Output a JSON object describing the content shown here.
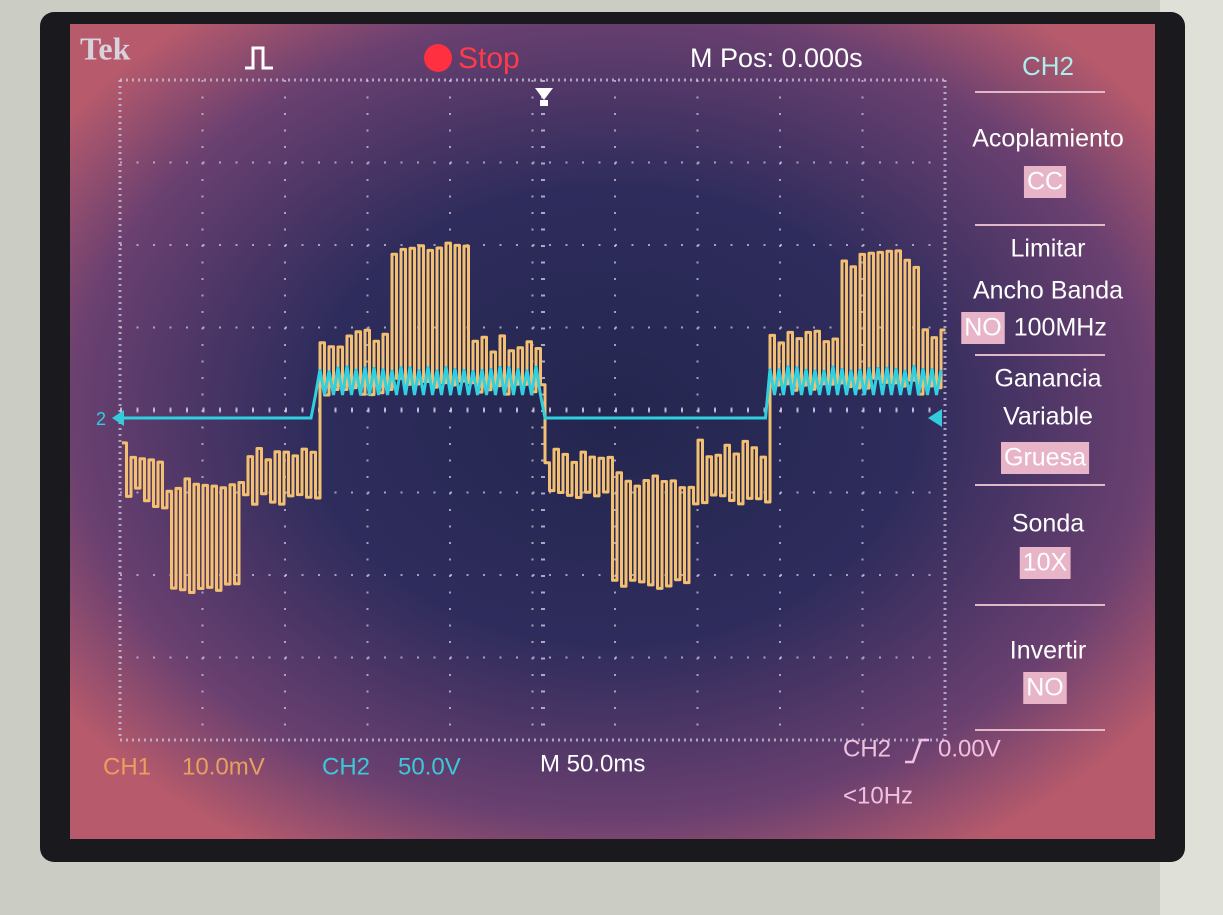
{
  "header": {
    "brand": "Tek",
    "status": "Stop",
    "position": "M Pos: 0.000s"
  },
  "menu": {
    "title": "CH2",
    "items": [
      {
        "lines": [
          "Acoplamiento"
        ],
        "value": "CC"
      },
      {
        "lines": [
          "Limitar",
          "Ancho Banda"
        ],
        "value": "NO",
        "extra": "100MHz"
      },
      {
        "lines": [
          "Ganancia",
          "Variable"
        ],
        "value": "Gruesa"
      },
      {
        "lines": [
          "Sonda"
        ],
        "value": "10X"
      },
      {
        "lines": [
          "Invertir"
        ],
        "value": "NO"
      }
    ]
  },
  "ground_marker": "2",
  "footer": {
    "ch1": {
      "channel": "CH1",
      "scale": "10.0mV"
    },
    "ch2": {
      "channel": "CH2",
      "scale": "50.0V"
    },
    "timebase": "M 50.0ms",
    "trigger": {
      "source": "CH2",
      "level": "0.00V",
      "frequency": "<10Hz"
    }
  }
}
